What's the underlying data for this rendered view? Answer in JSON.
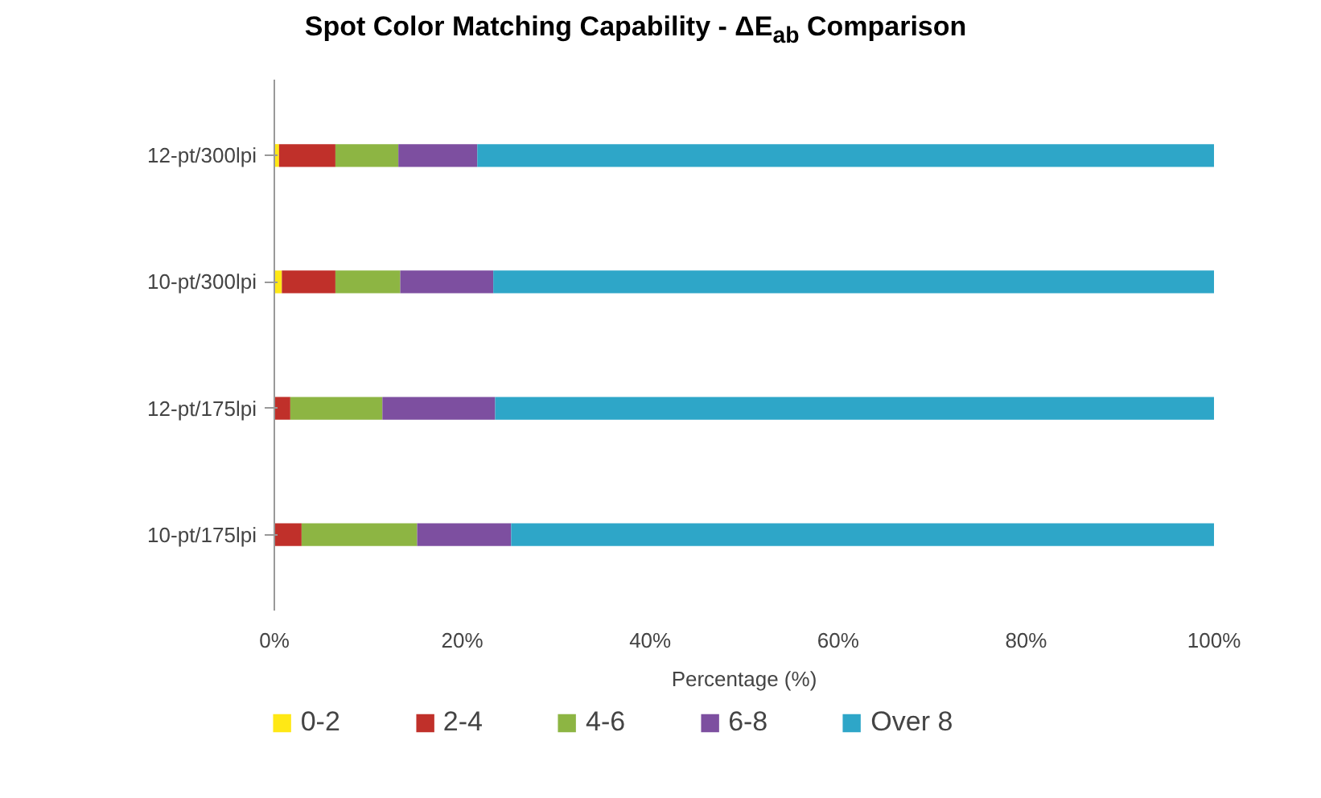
{
  "chart_data": {
    "type": "bar",
    "orientation": "horizontal",
    "stacked": true,
    "title": "Spot Color Matching Capability - ΔE$_{ab}$ Comparison",
    "xlabel": "Percentage (%)",
    "categories": [
      "12-pt/300lpi",
      "10-pt/300lpi",
      "12-pt/175lpi",
      "10-pt/175lpi"
    ],
    "series": [
      {
        "name": "0-2",
        "color": "#ffe815",
        "values": [
          0.5,
          0.8,
          0,
          0
        ]
      },
      {
        "name": "2-4",
        "color": "#c0302a",
        "values": [
          6.0,
          5.7,
          1.7,
          2.9
        ]
      },
      {
        "name": "4-6",
        "color": "#8db543",
        "values": [
          6.7,
          6.9,
          9.8,
          12.3
        ]
      },
      {
        "name": "6-8",
        "color": "#7d4fa0",
        "values": [
          8.4,
          9.9,
          12.0,
          10.0
        ]
      },
      {
        "name": "Over 8",
        "color": "#2ea6c8",
        "values": [
          78.4,
          76.7,
          76.5,
          74.8
        ]
      }
    ],
    "xlim": [
      0,
      100
    ],
    "xticks": [
      {
        "value": 0,
        "label": "0%"
      },
      {
        "value": 20,
        "label": "20%"
      },
      {
        "value": 40,
        "label": "40%"
      },
      {
        "value": 60,
        "label": "60%"
      },
      {
        "value": 80,
        "label": "80%"
      },
      {
        "value": 100,
        "label": "100%"
      }
    ],
    "grid": false,
    "legend": "bottom"
  }
}
